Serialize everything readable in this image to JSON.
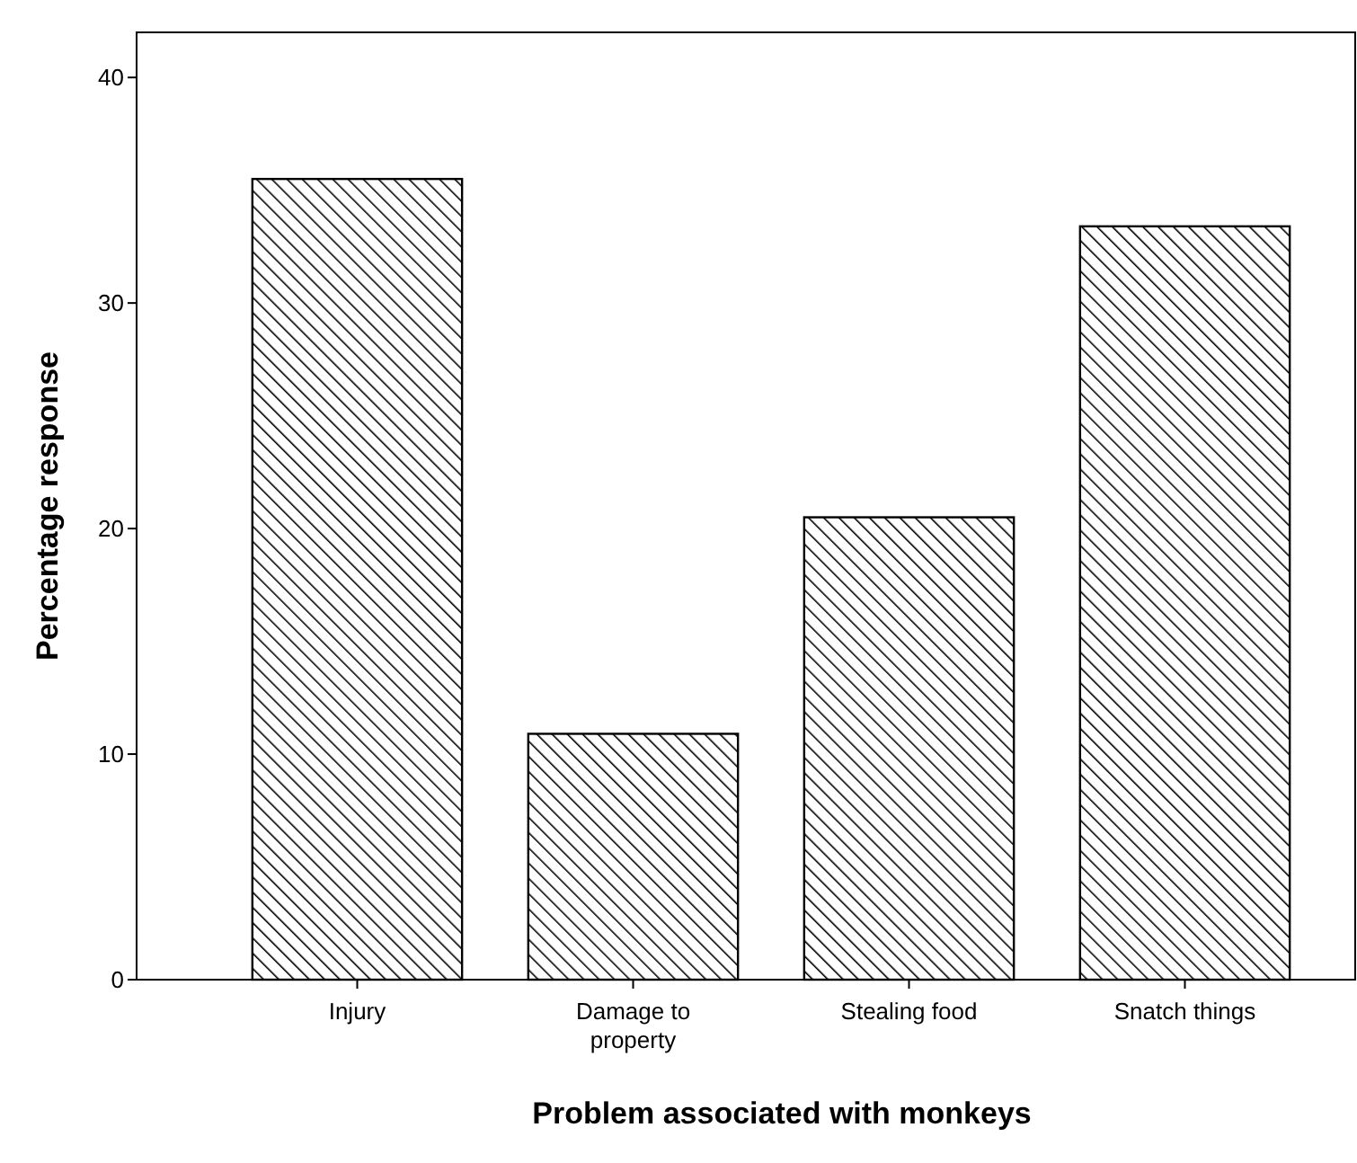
{
  "chart_data": {
    "type": "bar",
    "xlabel": "Problem associated with monkeys",
    "ylabel": "Percentage response",
    "categories": [
      "Injury",
      "Damage to property",
      "Stealing food",
      "Snatch things"
    ],
    "values": [
      35.5,
      10.9,
      20.5,
      33.4
    ],
    "color": "#000000",
    "ylim": [
      0,
      42
    ],
    "yticks": [
      0,
      10,
      20,
      30,
      40
    ],
    "grid": false
  }
}
